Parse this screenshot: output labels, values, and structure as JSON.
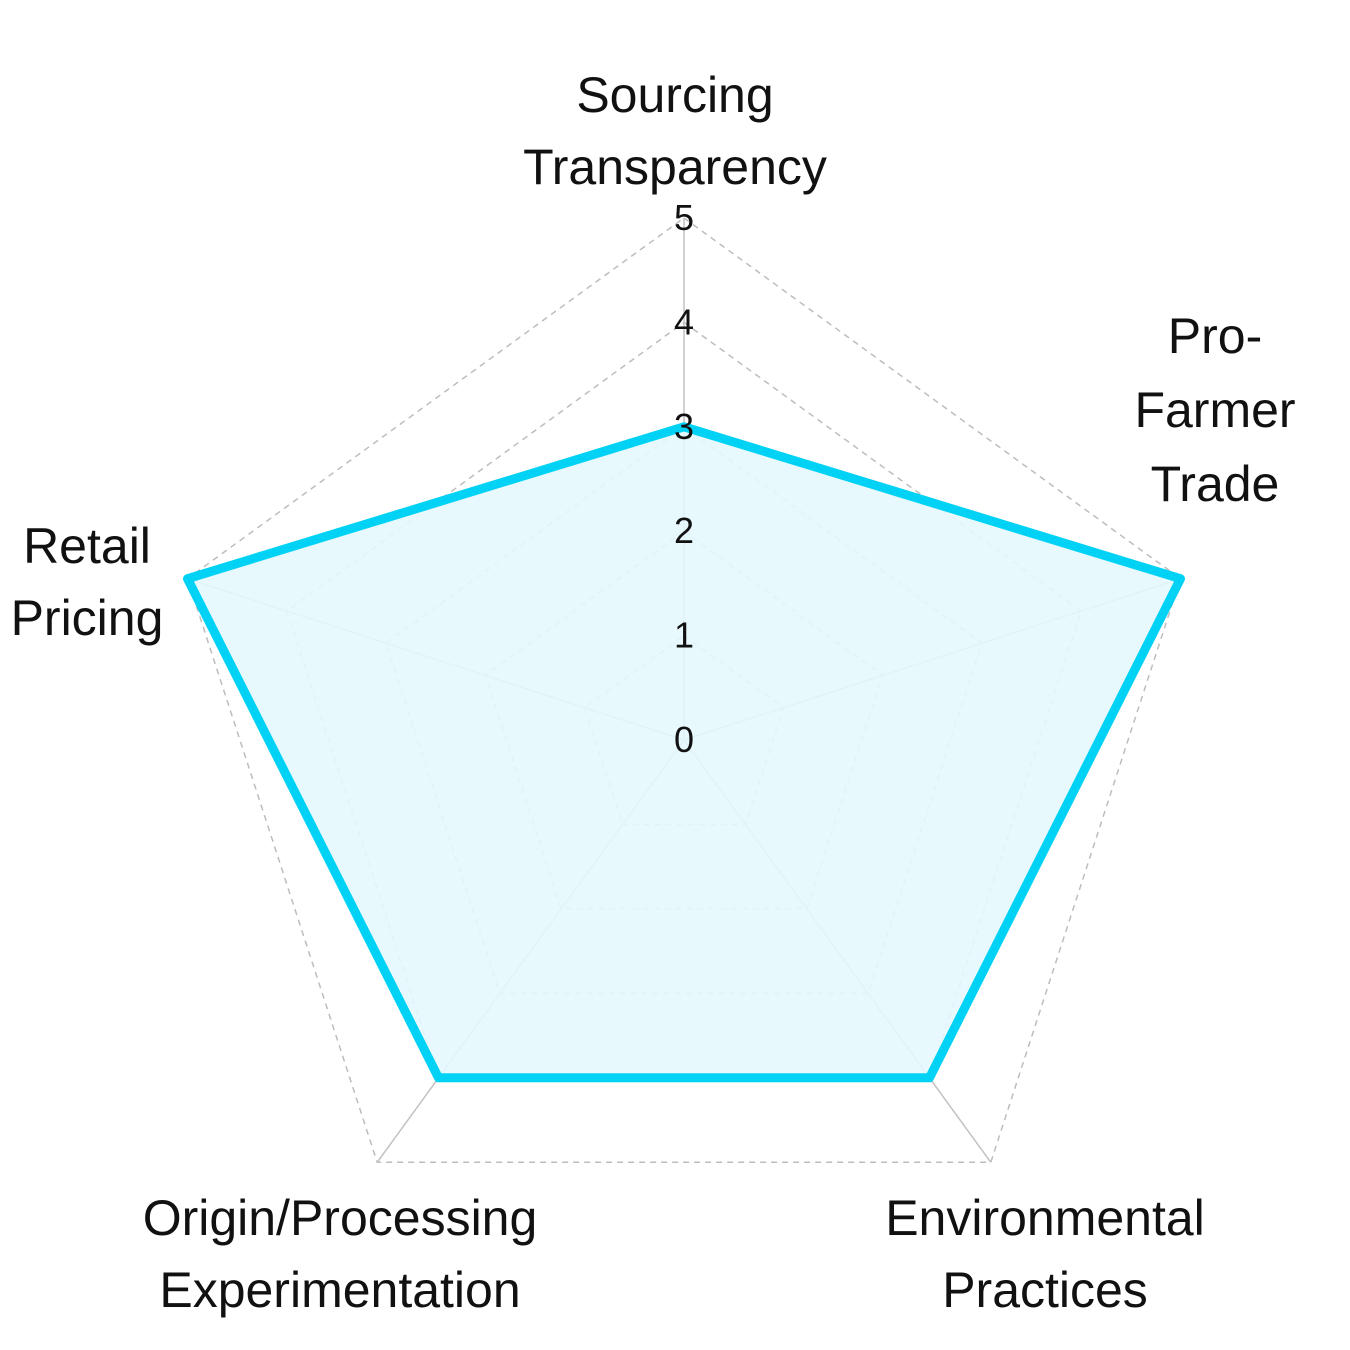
{
  "chart_data": {
    "type": "radar",
    "axes": [
      [
        "Sourcing",
        "Transparency"
      ],
      [
        "Pro-",
        "Farmer",
        "Trade"
      ],
      [
        "Environmental",
        "Practices"
      ],
      [
        "Origin/Processing",
        "Experimentation"
      ],
      [
        "Retail",
        "Pricing"
      ]
    ],
    "series": [
      {
        "values": [
          3,
          5,
          4,
          4,
          5
        ],
        "color": "#00d2f5",
        "fill": "#e4f8fd"
      }
    ],
    "r_range": [
      0,
      5
    ],
    "r_ticks": [
      "0",
      "1",
      "2",
      "3",
      "4",
      "5"
    ],
    "grid": true,
    "legend": false
  }
}
